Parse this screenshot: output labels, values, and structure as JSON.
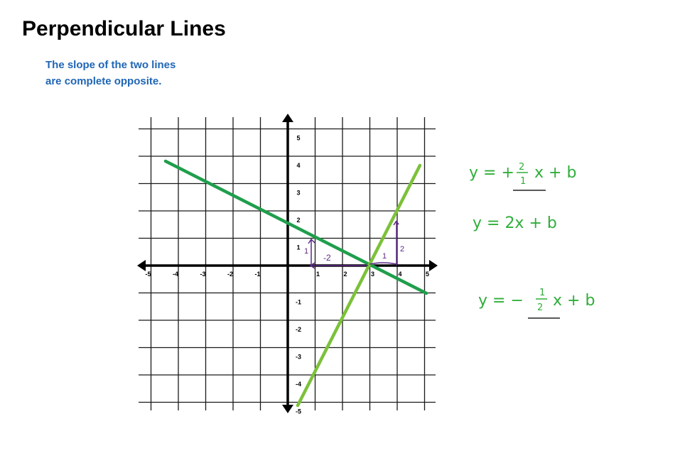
{
  "page": {
    "title": "Perpendicular Lines",
    "subtitle_lines": [
      "The slope of the two lines",
      "are complete opposite."
    ]
  },
  "graph": {
    "x_ticks": [
      "-5",
      "-4",
      "-3",
      "-2",
      "-1",
      "1",
      "2",
      "3",
      "4",
      "5"
    ],
    "y_ticks": [
      "5",
      "4",
      "3",
      "2",
      "1",
      "-1",
      "-2",
      "-3",
      "-4",
      "-5"
    ],
    "colors": {
      "line_a": "#1f9e4c",
      "line_b": "#7cc13a",
      "annotation": "#5b2a86",
      "handwriting": "#2fae3a"
    },
    "annotations": {
      "rise_a": "1",
      "run_a": "-2",
      "rise_b": "2",
      "run_b": "1"
    }
  },
  "equations": {
    "eq1": {
      "prefix": "y = +",
      "num": "2",
      "den": "1",
      "suffix": "x + b"
    },
    "eq2": {
      "text": "y = 2x + b"
    },
    "eq3": {
      "prefix": "y = −",
      "num": "1",
      "den": "2",
      "suffix": "x + b"
    }
  }
}
